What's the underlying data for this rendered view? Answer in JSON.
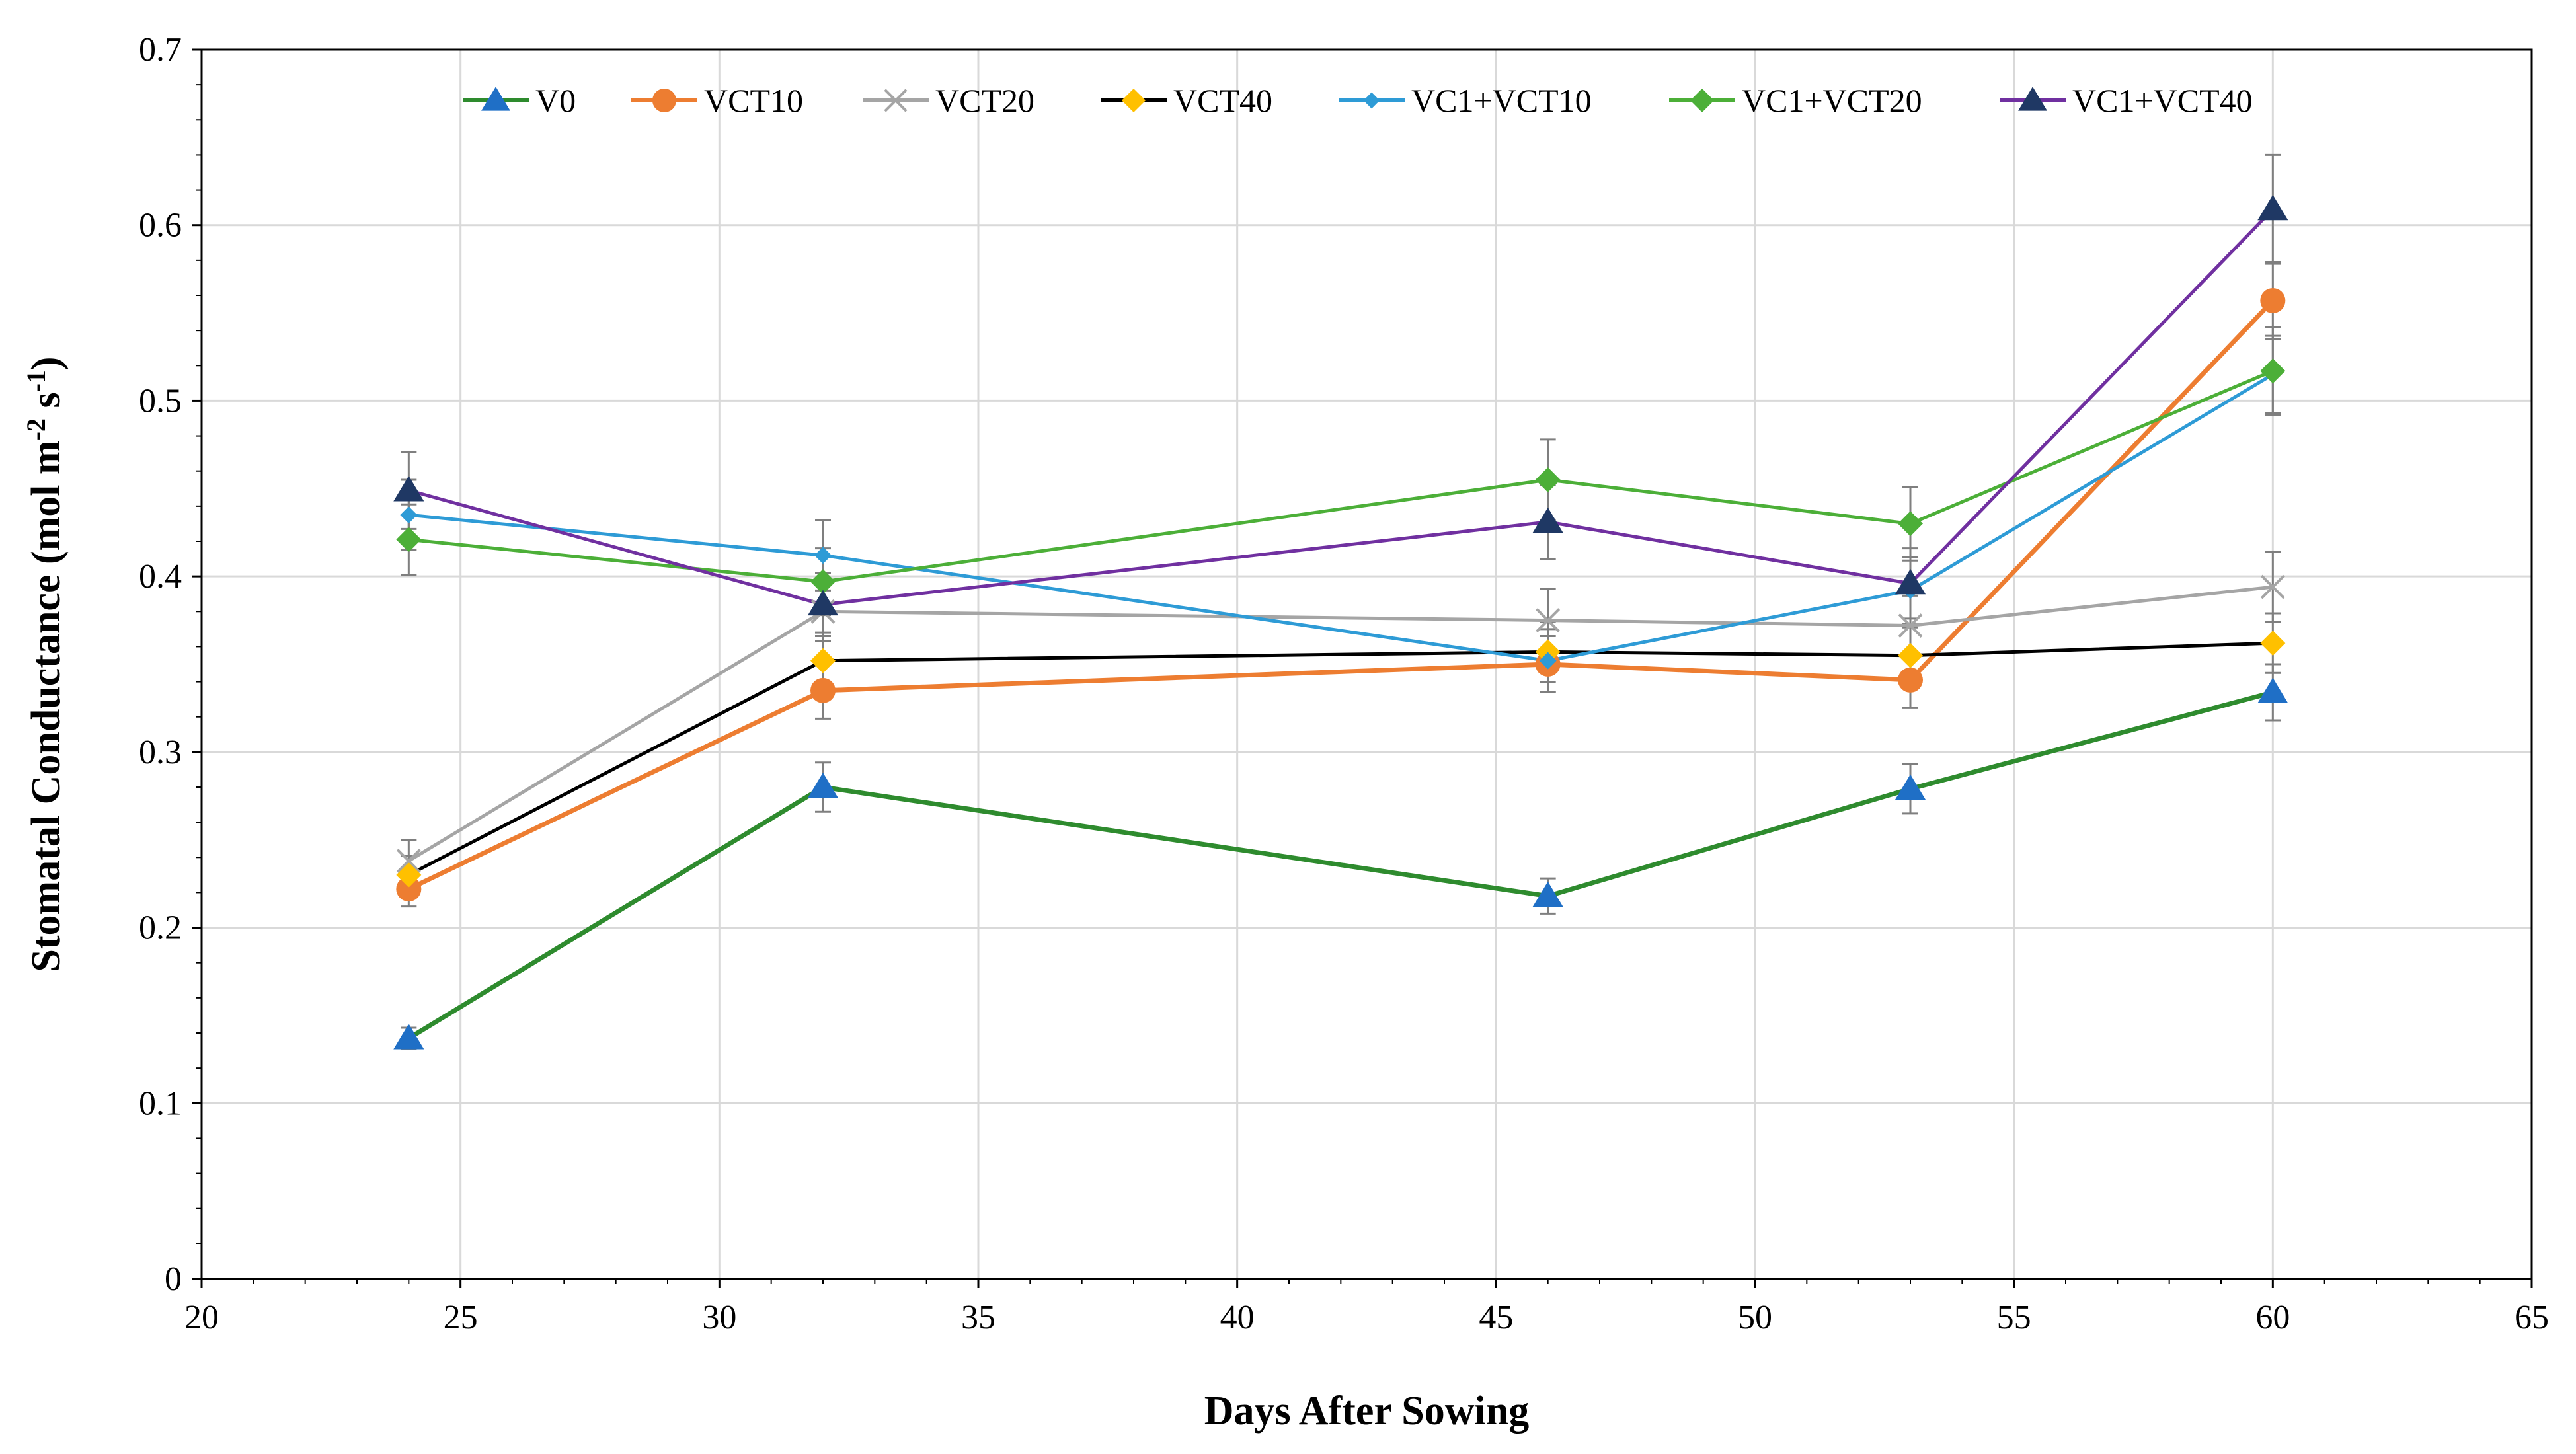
{
  "chart_data": {
    "type": "line",
    "title": "",
    "xlabel": "Days After Sowing",
    "ylabel_parts": {
      "main": "Stomatal Conductance (mol m",
      "sup1": "-2",
      "mid": " s",
      "sup2": "-1",
      "end": ")"
    },
    "xlim": [
      20,
      65
    ],
    "ylim": [
      0,
      0.7
    ],
    "xticks": [
      20,
      25,
      30,
      35,
      40,
      45,
      50,
      55,
      60,
      65
    ],
    "yticks": [
      0,
      0.1,
      0.2,
      0.3,
      0.4,
      0.5,
      0.6,
      0.7
    ],
    "xtick_labels": [
      "20",
      "25",
      "30",
      "35",
      "40",
      "45",
      "50",
      "55",
      "60",
      "65"
    ],
    "ytick_labels": [
      "0",
      "0.1",
      "0.2",
      "0.3",
      "0.4",
      "0.5",
      "0.6",
      "0.7"
    ],
    "grid": true,
    "legend_position": "top",
    "x": [
      24,
      32,
      46,
      53,
      60
    ],
    "series": [
      {
        "name": "V0",
        "color": "#2e8b2e",
        "marker": "triangle",
        "marker_color": "#1f6fc6",
        "values": [
          0.137,
          0.28,
          0.218,
          0.279,
          0.334
        ],
        "errors": [
          0.006,
          0.014,
          0.01,
          0.014,
          0.016
        ]
      },
      {
        "name": "VCT10",
        "color": "#ed7d31",
        "marker": "circle",
        "marker_color": "#ed7d31",
        "values": [
          0.222,
          0.335,
          0.35,
          0.341,
          0.557
        ],
        "errors": [
          0.01,
          0.016,
          0.016,
          0.016,
          0.022
        ]
      },
      {
        "name": "VCT20",
        "color": "#a5a5a5",
        "marker": "x",
        "marker_color": "#a5a5a5",
        "values": [
          0.238,
          0.38,
          0.375,
          0.372,
          0.394
        ],
        "errors": [
          0.012,
          0.017,
          0.018,
          0.017,
          0.02
        ]
      },
      {
        "name": "VCT40",
        "color": "#000000",
        "marker": "diamond",
        "marker_color": "#ffc000",
        "values": [
          0.23,
          0.352,
          0.357,
          0.355,
          0.362
        ],
        "errors": [
          0.011,
          0.016,
          0.017,
          0.016,
          0.017
        ]
      },
      {
        "name": "VC1+VCT10",
        "color": "#2e9bd6",
        "marker": "diamond-small",
        "marker_color": "#2e9bd6",
        "values": [
          0.435,
          0.412,
          0.352,
          0.392,
          0.515
        ],
        "errors": [
          0.02,
          0.02,
          0.018,
          0.019,
          0.022
        ]
      },
      {
        "name": "VC1+VCT20",
        "color": "#4caf38",
        "marker": "diamond",
        "marker_color": "#4caf38",
        "values": [
          0.421,
          0.397,
          0.455,
          0.43,
          0.517
        ],
        "errors": [
          0.02,
          0.019,
          0.023,
          0.021,
          0.025
        ]
      },
      {
        "name": "VC1+VCT40",
        "color": "#7030a0",
        "marker": "triangle",
        "marker_color": "#1f3864",
        "values": [
          0.449,
          0.384,
          0.431,
          0.396,
          0.609
        ],
        "errors": [
          0.022,
          0.018,
          0.021,
          0.02,
          0.031
        ]
      }
    ]
  }
}
